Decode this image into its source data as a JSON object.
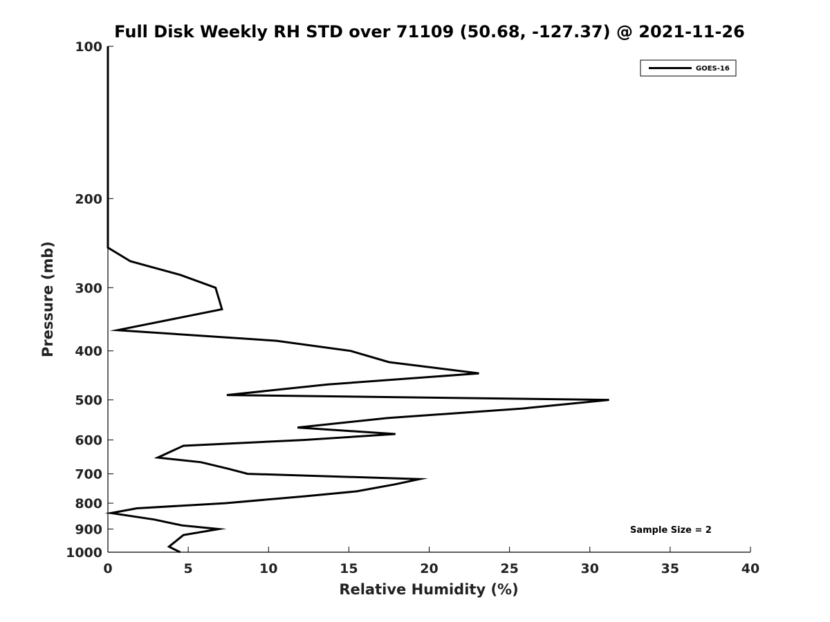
{
  "chart_data": {
    "type": "line",
    "title": "Full Disk Weekly RH STD over 71109 (50.68, -127.37) @ 2021-11-26",
    "xlabel": "Relative Humidity (%)",
    "ylabel": "Pressure (mb)",
    "xlim": [
      0,
      40
    ],
    "ylim": [
      100,
      1000
    ],
    "y_scale": "log",
    "y_reversed": true,
    "xticks": [
      0,
      5,
      10,
      15,
      20,
      25,
      30,
      35,
      40
    ],
    "yticks": [
      100,
      200,
      300,
      400,
      500,
      600,
      700,
      800,
      900,
      1000
    ],
    "grid": false,
    "legend_position": "top-right",
    "annotation": "Sample Size = 2",
    "series_color": "#000000",
    "series": [
      {
        "name": "GOES-16",
        "points": [
          [
            0,
            100
          ],
          [
            0,
            150
          ],
          [
            0,
            200
          ],
          [
            0,
            250
          ],
          [
            1.4,
            266
          ],
          [
            4.5,
            283
          ],
          [
            6.7,
            300
          ],
          [
            6.9,
            315
          ],
          [
            7.1,
            331
          ],
          [
            0.6,
            364
          ],
          [
            10.5,
            382
          ],
          [
            15.1,
            400
          ],
          [
            17.5,
            421
          ],
          [
            23.1,
            443
          ],
          [
            13.7,
            466
          ],
          [
            7.4,
            489
          ],
          [
            31.2,
            500
          ],
          [
            25.8,
            520
          ],
          [
            17.4,
            543
          ],
          [
            11.8,
            567
          ],
          [
            17.9,
            584
          ],
          [
            12.2,
            600
          ],
          [
            4.7,
            616
          ],
          [
            3.1,
            650
          ],
          [
            5.8,
            664
          ],
          [
            7.5,
            684
          ],
          [
            8.7,
            700
          ],
          [
            19.4,
            717
          ],
          [
            17.9,
            734
          ],
          [
            15.5,
            758
          ],
          [
            12.3,
            775
          ],
          [
            7.3,
            800
          ],
          [
            1.8,
            819
          ],
          [
            0.2,
            837
          ],
          [
            2.9,
            862
          ],
          [
            4.6,
            885
          ],
          [
            6.9,
            900
          ],
          [
            4.7,
            925
          ],
          [
            3.8,
            975
          ],
          [
            4.5,
            1000
          ]
        ]
      }
    ]
  }
}
